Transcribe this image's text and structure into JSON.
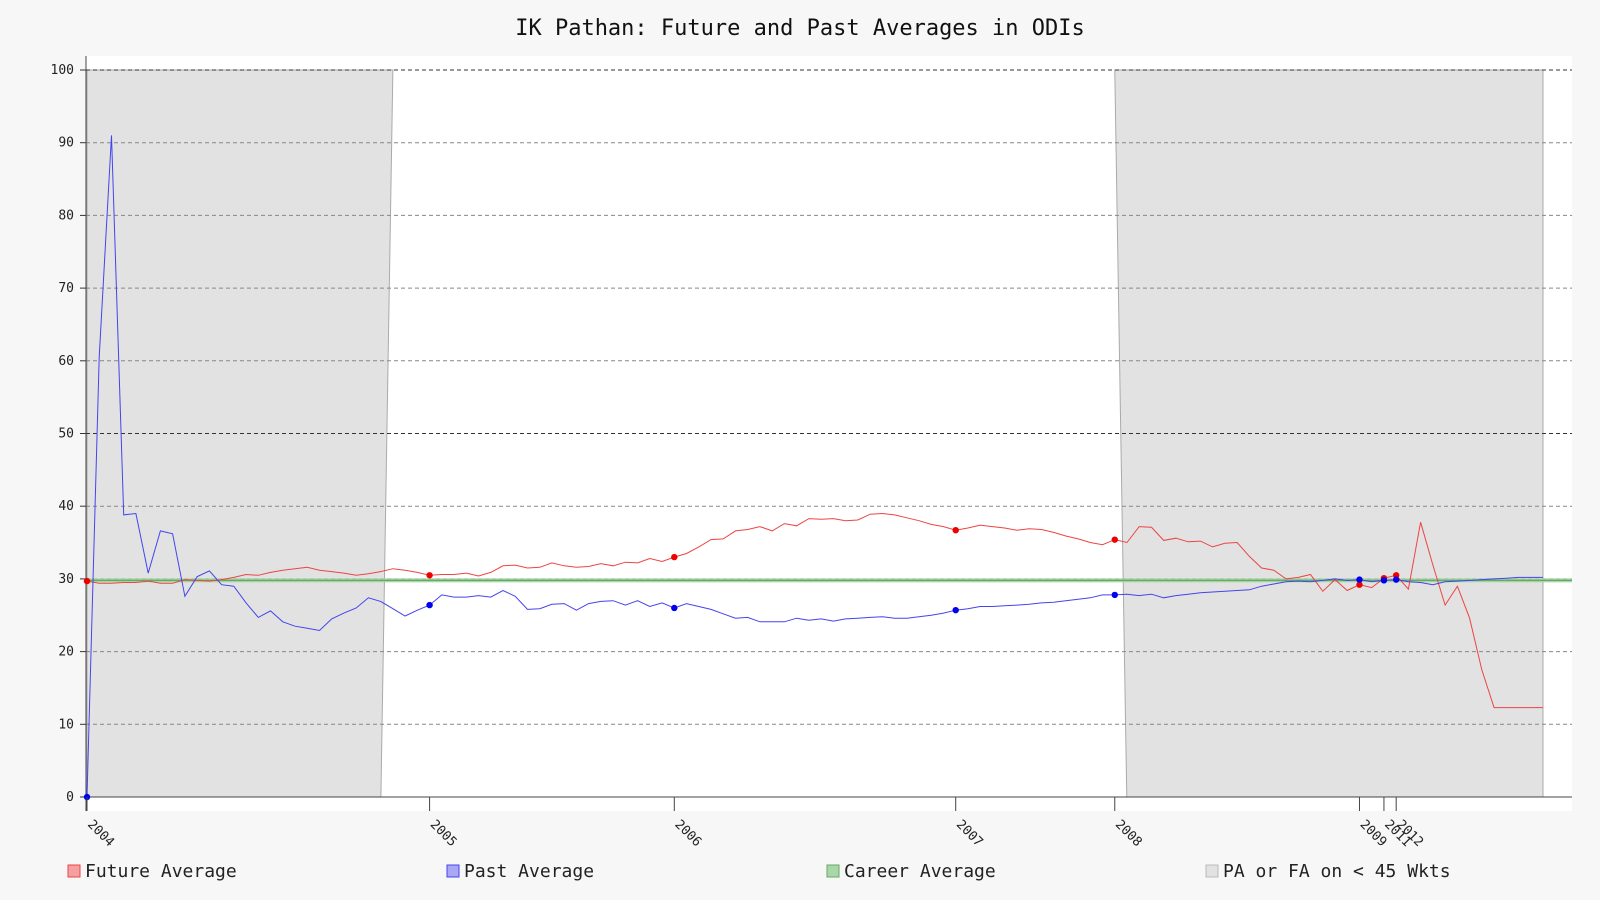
{
  "chart_data": {
    "type": "line",
    "title": "IK Pathan: Future and Past Averages in ODIs",
    "xlabel": "",
    "ylabel": "",
    "ylim": [
      0,
      100
    ],
    "yticks": [
      0,
      10,
      20,
      30,
      40,
      50,
      60,
      70,
      80,
      90,
      100
    ],
    "grid": true,
    "legend_position": "bottom",
    "x_tick_labels": [
      "2004",
      "2005",
      "2006",
      "2007",
      "2008",
      "2009",
      "2011",
      "2012"
    ],
    "career_average": 29.8,
    "shaded_regions_label": "PA or FA on < 45 Wkts",
    "colors": {
      "future": "#ee4444",
      "past": "#4444ee",
      "career": "#66aa66",
      "shade": "#e2e2e2"
    },
    "series": [
      {
        "name": "Future Average",
        "color": "#ee4444",
        "x": [
          1,
          2,
          3,
          4,
          5,
          6,
          7,
          8,
          9,
          10,
          11,
          12,
          13,
          14,
          15,
          16,
          17,
          18,
          19,
          20,
          21,
          22,
          23,
          24,
          25,
          26,
          27,
          28,
          29,
          30,
          31,
          32,
          33,
          34,
          35,
          36,
          37,
          38,
          39,
          40,
          41,
          42,
          43,
          44,
          45,
          46,
          47,
          48,
          49,
          50,
          51,
          52,
          53,
          54,
          55,
          56,
          57,
          58,
          59,
          60,
          61,
          62,
          63,
          64,
          65,
          66,
          67,
          68,
          69,
          70,
          71,
          72,
          73,
          74,
          75,
          76,
          77,
          78,
          79,
          80,
          81,
          82,
          83,
          84,
          85,
          86,
          87,
          88,
          89,
          90,
          91,
          92,
          93,
          94,
          95,
          96,
          97,
          98,
          99,
          100,
          101,
          102,
          103,
          104,
          105,
          106,
          107,
          108,
          109,
          110,
          111,
          112,
          113,
          114,
          115,
          116,
          117,
          118,
          119,
          120
        ],
        "values": [
          29.7,
          29.4,
          29.4,
          29.5,
          29.5,
          29.7,
          29.4,
          29.4,
          29.9,
          29.8,
          29.7,
          29.9,
          30.2,
          30.6,
          30.5,
          30.9,
          31.2,
          31.4,
          31.6,
          31.2,
          31.0,
          30.8,
          30.5,
          30.7,
          31.0,
          31.4,
          31.2,
          30.9,
          30.5,
          30.6,
          30.6,
          30.8,
          30.4,
          30.9,
          31.8,
          31.9,
          31.5,
          31.6,
          32.2,
          31.8,
          31.6,
          31.7,
          32.1,
          31.8,
          32.3,
          32.2,
          32.8,
          32.4,
          33.0,
          33.5,
          34.4,
          35.4,
          35.5,
          36.6,
          36.8,
          37.2,
          36.6,
          37.6,
          37.3,
          38.3,
          38.2,
          38.3,
          38.0,
          38.1,
          38.9,
          39.0,
          38.8,
          38.4,
          38.0,
          37.5,
          37.2,
          36.7,
          37.0,
          37.4,
          37.2,
          37.0,
          36.7,
          36.9,
          36.8,
          36.4,
          35.9,
          35.5,
          35.0,
          34.7,
          35.4,
          35.0,
          37.2,
          37.1,
          35.3,
          35.6,
          35.1,
          35.2,
          34.4,
          34.9,
          35.0,
          33.1,
          31.5,
          31.2,
          30.0,
          30.2,
          30.6,
          28.3,
          29.9,
          28.4,
          29.2,
          28.8,
          30.1,
          30.5,
          28.6,
          37.8,
          31.9,
          26.4,
          29.0,
          24.6,
          17.5,
          12.3,
          12.3,
          12.3,
          12.3,
          12.3
        ],
        "marker_indices": [
          0,
          28,
          48,
          71,
          84,
          104,
          106,
          107
        ]
      },
      {
        "name": "Past Average",
        "color": "#4444ee",
        "x": [
          1,
          2,
          3,
          4,
          5,
          6,
          7,
          8,
          9,
          10,
          11,
          12,
          13,
          14,
          15,
          16,
          17,
          18,
          19,
          20,
          21,
          22,
          23,
          24,
          25,
          26,
          27,
          28,
          29,
          30,
          31,
          32,
          33,
          34,
          35,
          36,
          37,
          38,
          39,
          40,
          41,
          42,
          43,
          44,
          45,
          46,
          47,
          48,
          49,
          50,
          51,
          52,
          53,
          54,
          55,
          56,
          57,
          58,
          59,
          60,
          61,
          62,
          63,
          64,
          65,
          66,
          67,
          68,
          69,
          70,
          71,
          72,
          73,
          74,
          75,
          76,
          77,
          78,
          79,
          80,
          81,
          82,
          83,
          84,
          85,
          86,
          87,
          88,
          89,
          90,
          91,
          92,
          93,
          94,
          95,
          96,
          97,
          98,
          99,
          100,
          101,
          102,
          103,
          104,
          105,
          106,
          107,
          108,
          109,
          110,
          111,
          112,
          113,
          114,
          115,
          116,
          117,
          118,
          119,
          120
        ],
        "values": [
          0,
          60.5,
          91.0,
          38.8,
          39.0,
          30.8,
          36.6,
          36.2,
          27.6,
          30.3,
          31.1,
          29.2,
          29.0,
          26.7,
          24.7,
          25.6,
          24.1,
          23.5,
          23.2,
          22.9,
          24.5,
          25.3,
          26.0,
          27.4,
          26.9,
          25.9,
          24.9,
          25.7,
          26.4,
          27.8,
          27.5,
          27.5,
          27.7,
          27.5,
          28.4,
          27.6,
          25.8,
          25.9,
          26.5,
          26.6,
          25.7,
          26.6,
          26.9,
          27.0,
          26.4,
          27.0,
          26.2,
          26.7,
          26.0,
          26.6,
          26.2,
          25.8,
          25.2,
          24.6,
          24.7,
          24.1,
          24.1,
          24.1,
          24.6,
          24.3,
          24.5,
          24.2,
          24.5,
          24.6,
          24.7,
          24.8,
          24.6,
          24.6,
          24.8,
          25.0,
          25.3,
          25.7,
          25.9,
          26.2,
          26.2,
          26.3,
          26.4,
          26.5,
          26.7,
          26.8,
          27.0,
          27.2,
          27.4,
          27.8,
          27.8,
          27.9,
          27.7,
          27.9,
          27.4,
          27.7,
          27.9,
          28.1,
          28.2,
          28.3,
          28.4,
          28.5,
          29.0,
          29.3,
          29.6,
          29.7,
          29.6,
          29.8,
          30.0,
          29.8,
          29.9,
          29.6,
          29.8,
          29.9,
          29.6,
          29.5,
          29.2,
          29.6,
          29.7,
          29.8,
          29.9,
          30.0,
          30.1,
          30.2,
          30.2,
          30.2
        ],
        "marker_indices": [
          0,
          28,
          48,
          71,
          84,
          104,
          106,
          107
        ]
      },
      {
        "name": "Career Average",
        "color": "#66aa66",
        "values": [
          29.8
        ]
      }
    ]
  },
  "legend": [
    {
      "label": "Future Average",
      "color": "#ee4444",
      "fill": "#f4a0a0"
    },
    {
      "label": "Past Average",
      "color": "#4444ee",
      "fill": "#a8a8f4"
    },
    {
      "label": "Career Average",
      "color": "#66aa66",
      "fill": "#a8d8a8"
    },
    {
      "label": "PA or FA on < 45 Wkts",
      "color": "#bbbbbb",
      "fill": "#e2e2e2"
    }
  ]
}
